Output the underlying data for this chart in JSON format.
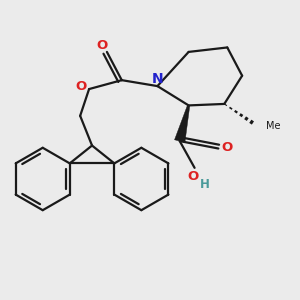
{
  "bg_color": "#ebebeb",
  "bond_color": "#1a1a1a",
  "N_color": "#2222cc",
  "O_color": "#dd2222",
  "OH_color": "#4a9a9a",
  "H_color": "#4a9a9a",
  "line_width": 1.6,
  "figsize": [
    3.0,
    3.0
  ],
  "dpi": 100,
  "xlim": [
    0,
    10
  ],
  "ylim": [
    0,
    10
  ]
}
